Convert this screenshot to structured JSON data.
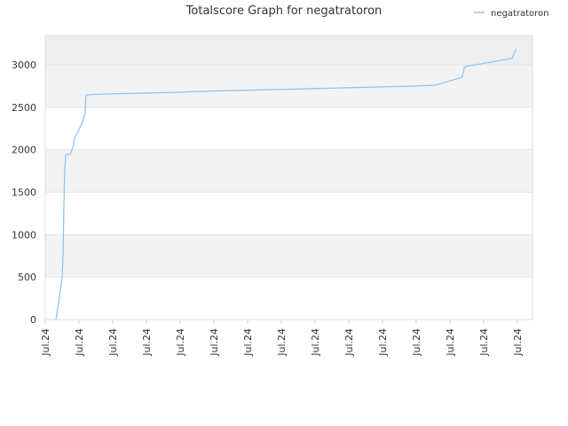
{
  "chart_data": {
    "type": "line",
    "title": "Totalscore Graph for negatratoron",
    "legend": "top-right",
    "grid": true,
    "xlim": [
      0,
      14.45
    ],
    "ylim": [
      0,
      3345
    ],
    "xticks": [
      {
        "value": 0,
        "label": "Jul.24"
      },
      {
        "value": 1,
        "label": "Jul.24"
      },
      {
        "value": 2,
        "label": "Jul.24"
      },
      {
        "value": 3,
        "label": "Jul.24"
      },
      {
        "value": 4,
        "label": "Jul.24"
      },
      {
        "value": 5,
        "label": "Jul.24"
      },
      {
        "value": 6,
        "label": "Jul.24"
      },
      {
        "value": 7,
        "label": "Jul.24"
      },
      {
        "value": 8,
        "label": "Jul.24"
      },
      {
        "value": 9,
        "label": "Jul.24"
      },
      {
        "value": 10,
        "label": "Jul.24"
      },
      {
        "value": 11,
        "label": "Jul.24"
      },
      {
        "value": 12,
        "label": "Jul.24"
      },
      {
        "value": 13,
        "label": "Jul.24"
      },
      {
        "value": 14,
        "label": "Jul.24"
      }
    ],
    "yticks": [
      0,
      500,
      1000,
      1500,
      2000,
      2500,
      3000
    ],
    "x": [
      0.32,
      0.5,
      0.53,
      0.55,
      0.58,
      0.61,
      0.74,
      0.82,
      0.87,
      0.97,
      1.08,
      1.18,
      1.21,
      1.74,
      2.79,
      3.84,
      4.89,
      5.95,
      7.0,
      8.0,
      9.0,
      10.0,
      11.0,
      11.58,
      12.37,
      12.42,
      12.47,
      13.84,
      13.97
    ],
    "series": [
      {
        "name": "negatratoron",
        "color": "#90c4f0",
        "values": [
          0,
          490,
          785,
          1305,
          1775,
          1945,
          1945,
          2030,
          2140,
          2210,
          2300,
          2425,
          2645,
          2655,
          2665,
          2675,
          2690,
          2700,
          2710,
          2720,
          2730,
          2740,
          2750,
          2760,
          2855,
          2960,
          2980,
          3075,
          3190
        ]
      }
    ]
  }
}
